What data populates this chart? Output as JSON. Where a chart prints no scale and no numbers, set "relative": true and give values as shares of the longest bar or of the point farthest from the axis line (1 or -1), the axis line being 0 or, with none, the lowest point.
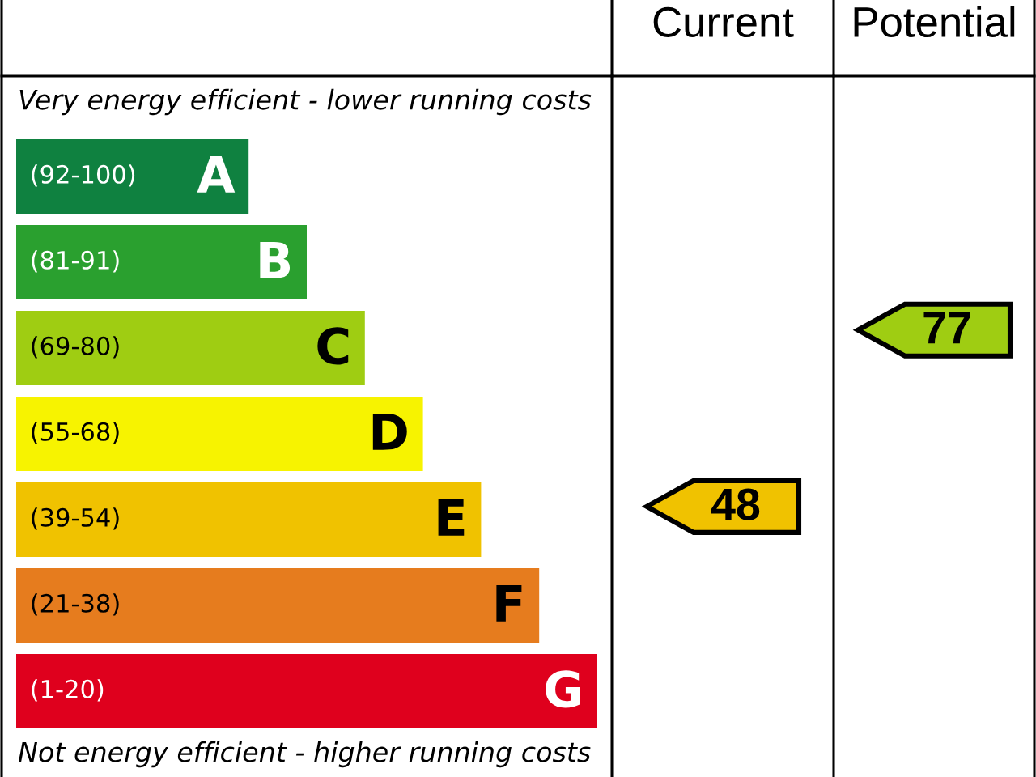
{
  "chart_data": [
    {
      "type": "bar",
      "orientation": "horizontal",
      "relative": true,
      "categories": [
        "A",
        "B",
        "C",
        "D",
        "E",
        "F",
        "G"
      ],
      "values": [
        0.4,
        0.5,
        0.6,
        0.7,
        0.8,
        0.9,
        1
      ],
      "colors": [
        "#0f8140",
        "#2aa02f",
        "#9fcd12",
        "#f7f300",
        "#f0c200",
        "#e67c1e",
        "#df001d"
      ],
      "annotations": [
        "Very energy efficient - lower running costs",
        "Not energy efficient - higher running costs",
        "(92-100)",
        "(81-91)",
        "(69-80)",
        "(55-68)",
        "(39-54)",
        "(21-38)",
        "(1-20)"
      ]
    },
    {
      "type": "other",
      "categories": [
        "Current"
      ],
      "values": [
        48
      ],
      "colors": [
        "#f0c200"
      ],
      "data_labels": true
    },
    {
      "type": "other",
      "categories": [
        "Potential"
      ],
      "values": [
        77
      ],
      "colors": [
        "#9fcd12"
      ],
      "data_labels": true
    }
  ]
}
